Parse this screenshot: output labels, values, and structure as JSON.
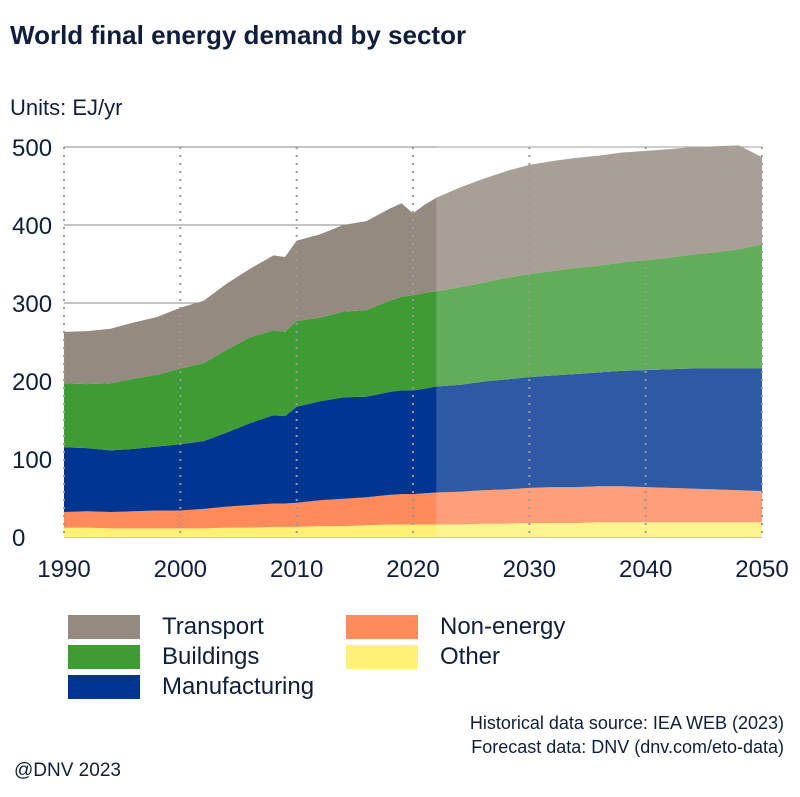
{
  "header": {
    "title": "World final energy demand by sector",
    "units": "Units: EJ/yr"
  },
  "footer": {
    "source_hist": "Historical data source: IEA WEB (2023)",
    "source_forecast": "Forecast data: DNV (dnv.com/eto-data)",
    "credit": "@DNV 2023"
  },
  "chart_data": {
    "type": "area",
    "stacked": true,
    "title": "World final energy demand by sector",
    "ylabel": "Units: EJ/yr",
    "xlim": [
      1990,
      2050
    ],
    "ylim": [
      0,
      500
    ],
    "x_ticks": [
      1990,
      2000,
      2010,
      2020,
      2030,
      2040,
      2050
    ],
    "y_ticks": [
      0,
      100,
      200,
      300,
      400,
      500
    ],
    "forecast_start": 2022,
    "grid": "horizontal solid, vertical dotted at decades",
    "legend_position": "below",
    "x": [
      1990,
      1992,
      1994,
      1996,
      1998,
      2000,
      2002,
      2004,
      2006,
      2008,
      2009,
      2010,
      2012,
      2014,
      2016,
      2018,
      2019,
      2020,
      2021,
      2022,
      2024,
      2026,
      2028,
      2030,
      2032,
      2034,
      2036,
      2038,
      2040,
      2042,
      2044,
      2046,
      2048,
      2050
    ],
    "series": [
      {
        "name": "Other",
        "color": "#fff176",
        "values": [
          12,
          12,
          11,
          11,
          11,
          11,
          11,
          12,
          12,
          13,
          13,
          13,
          14,
          14,
          15,
          16,
          16,
          16,
          16,
          16,
          16,
          17,
          17,
          18,
          18,
          18,
          19,
          19,
          19,
          19,
          19,
          19,
          19,
          19
        ]
      },
      {
        "name": "Non-energy",
        "color": "#ff8a5c",
        "values": [
          20,
          21,
          21,
          22,
          23,
          23,
          25,
          27,
          29,
          30,
          30,
          31,
          33,
          35,
          36,
          38,
          39,
          39,
          40,
          41,
          42,
          43,
          44,
          45,
          46,
          46,
          46,
          46,
          45,
          44,
          43,
          42,
          41,
          40
        ]
      },
      {
        "name": "Manufacturing",
        "color": "#003591",
        "values": [
          83,
          81,
          79,
          80,
          82,
          85,
          87,
          95,
          105,
          113,
          112,
          123,
          127,
          130,
          129,
          132,
          133,
          133,
          134,
          136,
          137,
          139,
          141,
          142,
          143,
          145,
          146,
          148,
          150,
          152,
          154,
          155,
          156,
          157
        ]
      },
      {
        "name": "Buildings",
        "color": "#3f9c35",
        "values": [
          82,
          82,
          86,
          90,
          92,
          97,
          100,
          106,
          110,
          109,
          108,
          110,
          107,
          110,
          111,
          117,
          120,
          122,
          123,
          122,
          125,
          127,
          130,
          132,
          134,
          136,
          137,
          139,
          141,
          143,
          146,
          149,
          153,
          159
        ]
      },
      {
        "name": "Transport",
        "color": "#958a80",
        "values": [
          66,
          68,
          70,
          72,
          74,
          78,
          80,
          85,
          88,
          96,
          96,
          103,
          107,
          111,
          114,
          118,
          120,
          105,
          113,
          120,
          128,
          133,
          137,
          140,
          141,
          141,
          141,
          141,
          140,
          139,
          138,
          136,
          133,
          112
        ]
      }
    ]
  },
  "legend": [
    {
      "label": "Transport",
      "color": "#958a80"
    },
    {
      "label": "Buildings",
      "color": "#3f9c35"
    },
    {
      "label": "Manufacturing",
      "color": "#003591"
    },
    {
      "label": "Non-energy",
      "color": "#ff8a5c"
    },
    {
      "label": "Other",
      "color": "#fff176"
    }
  ]
}
